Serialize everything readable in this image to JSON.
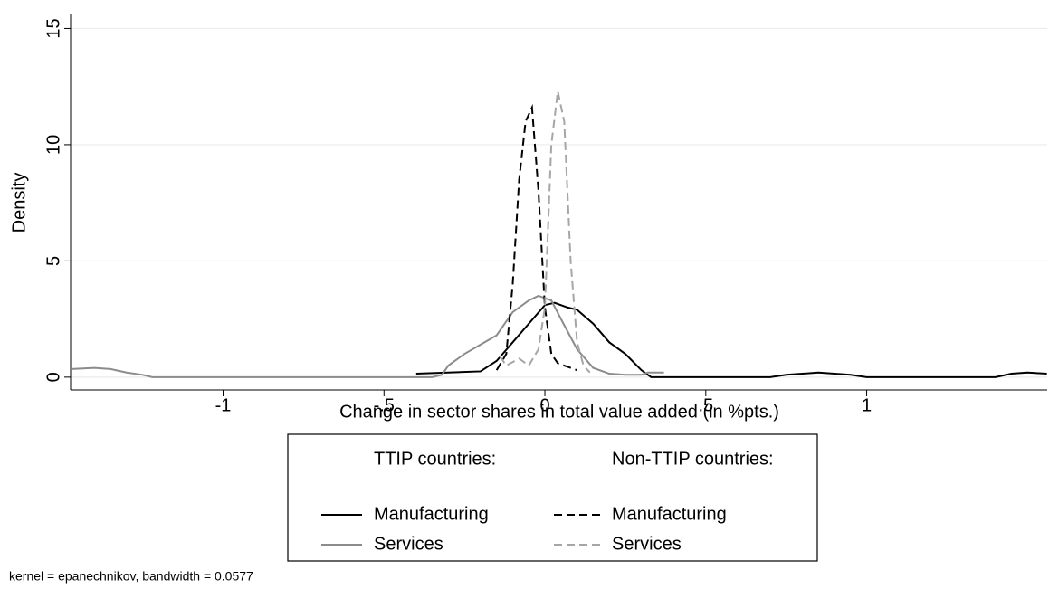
{
  "chart_data": {
    "type": "line",
    "x_label": "Change in sector shares in total value added (in %pts.)",
    "y_label": "Density",
    "note": "kernel = epanechnikov, bandwidth = 0.0577",
    "legend_titles": [
      "TTIP countries:",
      "Non-TTIP countries:"
    ],
    "xlim": [
      -1.474,
      1.561
    ],
    "ylim": [
      -0.55,
      15.64
    ],
    "xticks": [
      {
        "value": -1,
        "label": "-1"
      },
      {
        "value": -0.5,
        "label": "-.5"
      },
      0,
      {
        "value": 0.5,
        "label": ".5"
      },
      1
    ],
    "yticks": [
      0,
      5,
      10,
      15
    ],
    "grid": true,
    "series": [
      {
        "name": "Manufacturing",
        "color": "#000000",
        "dashed": false,
        "x": [
          -0.4,
          -0.3,
          -0.2,
          -0.15,
          -0.1,
          -0.05,
          0,
          0.03,
          0.07,
          0.1,
          0.15,
          0.2,
          0.25,
          0.3,
          0.33,
          0.5,
          0.7,
          0.75,
          0.85,
          0.95,
          1.0,
          1.2,
          1.4,
          1.45,
          1.5,
          1.56
        ],
        "values": [
          0.15,
          0.2,
          0.25,
          0.7,
          1.5,
          2.3,
          3.1,
          3.2,
          3.0,
          2.9,
          2.3,
          1.5,
          1.0,
          0.3,
          0,
          0,
          0,
          0.1,
          0.2,
          0.1,
          0,
          0,
          0,
          0.15,
          0.2,
          0.15
        ]
      },
      {
        "name": "Services",
        "color": "#8c8c8c",
        "dashed": false,
        "x": [
          -1.47,
          -1.4,
          -1.35,
          -1.3,
          -1.25,
          -1.22,
          -1,
          -0.5,
          -0.35,
          -0.32,
          -0.3,
          -0.25,
          -0.2,
          -0.15,
          -0.1,
          -0.05,
          -0.02,
          0.02,
          0.05,
          0.1,
          0.15,
          0.2,
          0.25,
          0.3,
          0.32,
          0.37
        ],
        "values": [
          0.35,
          0.4,
          0.35,
          0.2,
          0.1,
          0,
          0,
          0,
          0,
          0.1,
          0.5,
          1.0,
          1.4,
          1.8,
          2.8,
          3.3,
          3.5,
          3.3,
          2.5,
          1.2,
          0.4,
          0.15,
          0.1,
          0.1,
          0.2,
          0.2
        ]
      },
      {
        "name": "Manufacturing",
        "color": "#000000",
        "dashed": true,
        "x": [
          -0.15,
          -0.12,
          -0.1,
          -0.08,
          -0.06,
          -0.04,
          -0.02,
          0,
          0.02,
          0.04,
          0.06,
          0.08,
          0.1
        ],
        "values": [
          0.3,
          1,
          4,
          8.5,
          11,
          11.6,
          8,
          3,
          1,
          0.6,
          0.5,
          0.4,
          0.3
        ]
      },
      {
        "name": "Services",
        "color": "#a6a6a6",
        "dashed": true,
        "x": [
          -0.14,
          -0.12,
          -0.08,
          -0.05,
          -0.02,
          0,
          0.02,
          0.04,
          0.06,
          0.08,
          0.1,
          0.12,
          0.14
        ],
        "values": [
          0.9,
          0.5,
          0.8,
          0.5,
          1.2,
          3,
          10,
          12.3,
          11,
          5,
          1.5,
          0.5,
          0.2
        ]
      }
    ]
  }
}
